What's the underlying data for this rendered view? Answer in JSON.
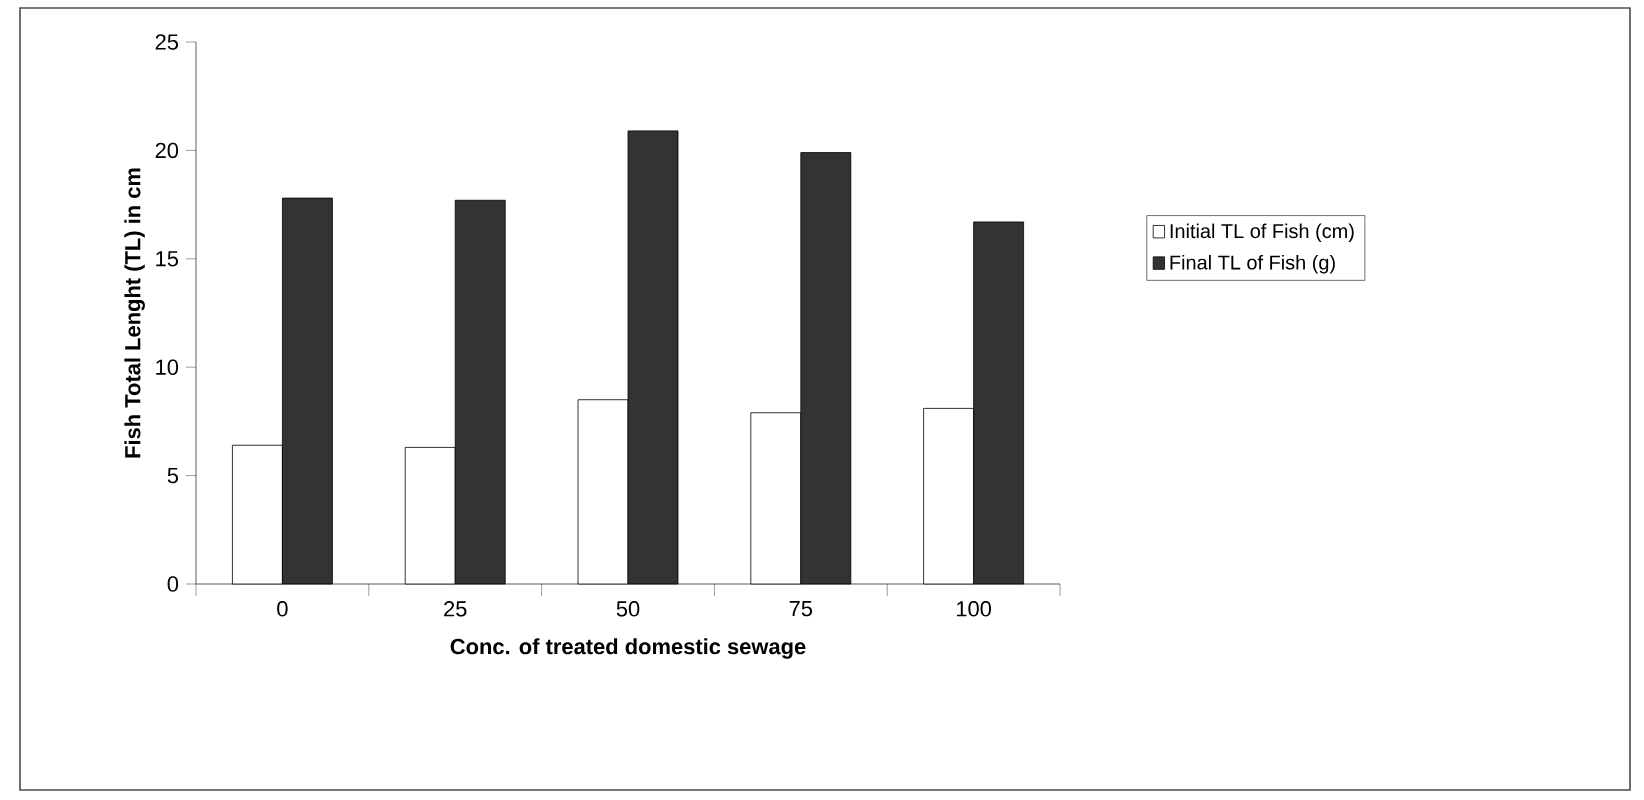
{
  "chart_data": {
    "type": "bar",
    "xlabel": "Conc. of treated domestic sewage",
    "ylabel": "Fish Total Lenght (TL) in cm",
    "categories": [
      "0",
      "25",
      "50",
      "75",
      "100"
    ],
    "series": [
      {
        "name": "Initial TL of Fish (cm)",
        "color": "#ffffff",
        "values": [
          6.4,
          6.3,
          8.5,
          7.9,
          8.1
        ]
      },
      {
        "name": "Final TL of Fish (g)",
        "color": "#333333",
        "values": [
          17.8,
          17.7,
          20.9,
          19.9,
          16.7
        ]
      }
    ],
    "ylim": [
      0,
      25
    ],
    "yticks": [
      0,
      5,
      10,
      15,
      20,
      25
    ],
    "grid": false,
    "legend": "right"
  }
}
